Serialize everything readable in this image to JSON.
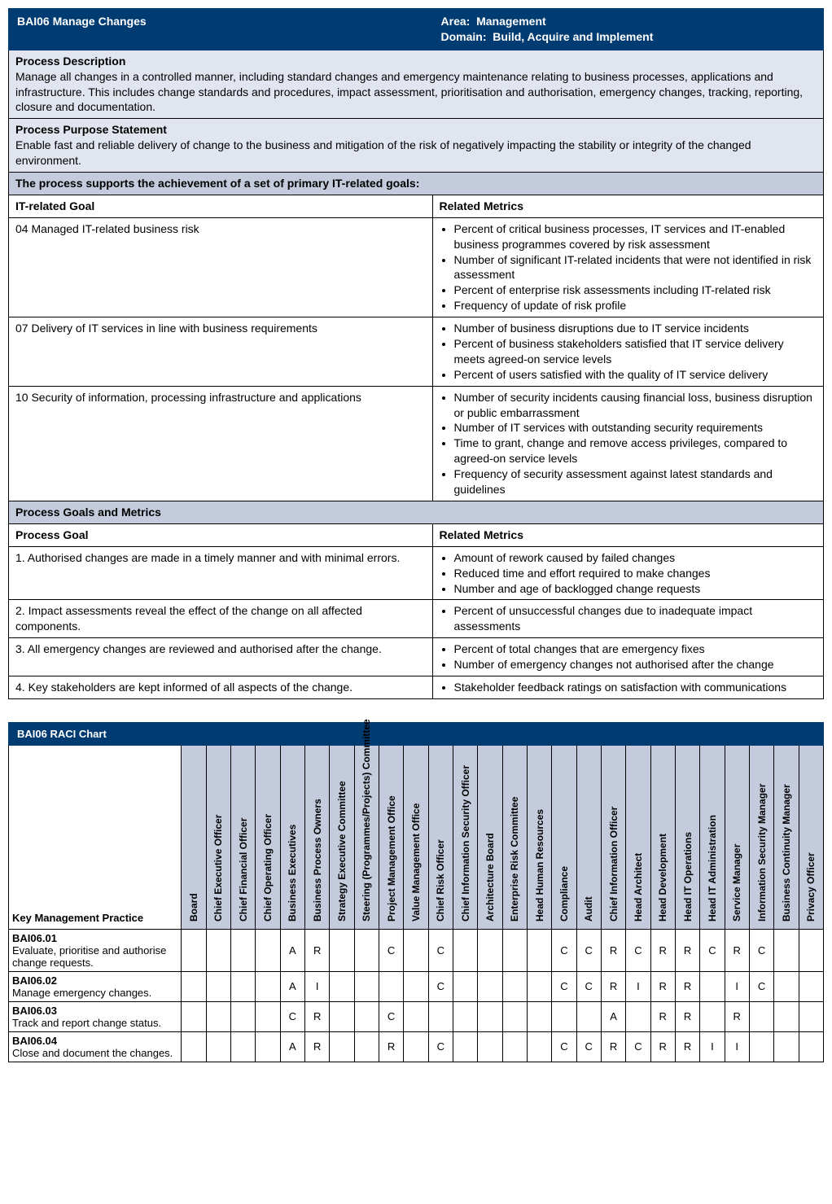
{
  "colors": {
    "header_bg": "#003b71",
    "header_text": "#ffffff",
    "section_light": "#e1e5ef",
    "section_med": "#c4cbdc",
    "border": "#000000"
  },
  "header": {
    "title": "BAI06 Manage Changes",
    "area_label": "Area:",
    "area_value": "Management",
    "domain_label": "Domain:",
    "domain_value": "Build, Acquire and Implement"
  },
  "process_description": {
    "title": "Process Description",
    "body": "Manage all changes in a controlled manner, including standard changes and emergency maintenance relating to business processes, applications and infrastructure. This includes change standards and procedures, impact assessment, prioritisation and authorisation, emergency changes, tracking, reporting, closure and documentation."
  },
  "process_purpose": {
    "title": "Process Purpose Statement",
    "body": "Enable fast and reliable delivery of change to the business and mitigation of the risk of negatively impacting the stability or integrity of the changed environment."
  },
  "supports_header": "The process supports the achievement of a set of primary IT-related goals:",
  "it_goal_col": "IT-related Goal",
  "related_metrics_col": "Related Metrics",
  "it_goals": [
    {
      "goal": "04 Managed IT-related business risk",
      "metrics": [
        "Percent of critical business processes, IT services and IT-enabled business programmes covered by risk assessment",
        "Number of significant IT-related incidents that were not identified in risk assessment",
        "Percent of enterprise risk assessments including IT-related risk",
        "Frequency of update of risk profile"
      ]
    },
    {
      "goal": "07 Delivery of IT services in line with business requirements",
      "metrics": [
        "Number of business disruptions due to IT service incidents",
        "Percent of business stakeholders satisfied that IT service delivery meets agreed-on service levels",
        "Percent of users satisfied with the quality of IT service delivery"
      ]
    },
    {
      "goal": "10 Security of information, processing infrastructure and applications",
      "metrics": [
        "Number of security incidents causing financial loss, business disruption or public embarrassment",
        "Number of IT services with outstanding security requirements",
        "Time to grant, change and remove access privileges, compared to agreed-on service levels",
        "Frequency of security assessment against latest standards and guidelines"
      ]
    }
  ],
  "process_goals_header": "Process Goals and Metrics",
  "process_goal_col": "Process Goal",
  "process_goals": [
    {
      "goal": "1. Authorised changes are made in a timely manner and with minimal errors.",
      "metrics": [
        "Amount of rework caused by failed changes",
        "Reduced time and effort required to make changes",
        "Number and age of backlogged change requests"
      ]
    },
    {
      "goal": "2. Impact assessments reveal the effect of the change on all affected components.",
      "metrics": [
        "Percent of unsuccessful changes due to inadequate impact assessments"
      ]
    },
    {
      "goal": "3. All emergency changes are reviewed and authorised after the change.",
      "metrics": [
        "Percent of total changes that are emergency fixes",
        "Number of emergency changes not authorised after the change"
      ]
    },
    {
      "goal": "4. Key stakeholders are kept informed of all aspects of the change.",
      "metrics": [
        "Stakeholder feedback ratings on satisfaction with communications"
      ]
    }
  ],
  "raci": {
    "title": "BAI06 RACI Chart",
    "kmp_header": "Key Management Practice",
    "roles": [
      "Board",
      "Chief Executive Officer",
      "Chief Financial Officer",
      "Chief Operating Officer",
      "Business Executives",
      "Business Process Owners",
      "Strategy Executive Committee",
      "Steering (Programmes/Projects) Committee",
      "Project Management Office",
      "Value Management Office",
      "Chief Risk Officer",
      "Chief Information Security Officer",
      "Architecture Board",
      "Enterprise Risk Committee",
      "Head Human Resources",
      "Compliance",
      "Audit",
      "Chief Information Officer",
      "Head Architect",
      "Head Development",
      "Head IT Operations",
      "Head IT Administration",
      "Service Manager",
      "Information Security Manager",
      "Business Continuity Manager",
      "Privacy Officer"
    ],
    "practices": [
      {
        "code": "BAI06.01",
        "name": "Evaluate, prioritise and authorise change requests.",
        "cells": [
          "",
          "",
          "",
          "",
          "A",
          "R",
          "",
          "",
          "C",
          "",
          "C",
          "",
          "",
          "",
          "",
          "C",
          "C",
          "R",
          "C",
          "R",
          "R",
          "C",
          "R",
          "C",
          "",
          ""
        ]
      },
      {
        "code": "BAI06.02",
        "name": "Manage emergency changes.",
        "cells": [
          "",
          "",
          "",
          "",
          "A",
          "I",
          "",
          "",
          "",
          "",
          "C",
          "",
          "",
          "",
          "",
          "C",
          "C",
          "R",
          "I",
          "R",
          "R",
          "",
          "I",
          "C",
          "",
          ""
        ]
      },
      {
        "code": "BAI06.03",
        "name": "Track and report change status.",
        "cells": [
          "",
          "",
          "",
          "",
          "C",
          "R",
          "",
          "",
          "C",
          "",
          "",
          "",
          "",
          "",
          "",
          "",
          "",
          "A",
          "",
          "R",
          "R",
          "",
          "R",
          "",
          "",
          ""
        ]
      },
      {
        "code": "BAI06.04",
        "name": "Close and document the changes.",
        "cells": [
          "",
          "",
          "",
          "",
          "A",
          "R",
          "",
          "",
          "R",
          "",
          "C",
          "",
          "",
          "",
          "",
          "C",
          "C",
          "R",
          "C",
          "R",
          "R",
          "I",
          "I",
          "",
          "",
          ""
        ]
      }
    ]
  }
}
